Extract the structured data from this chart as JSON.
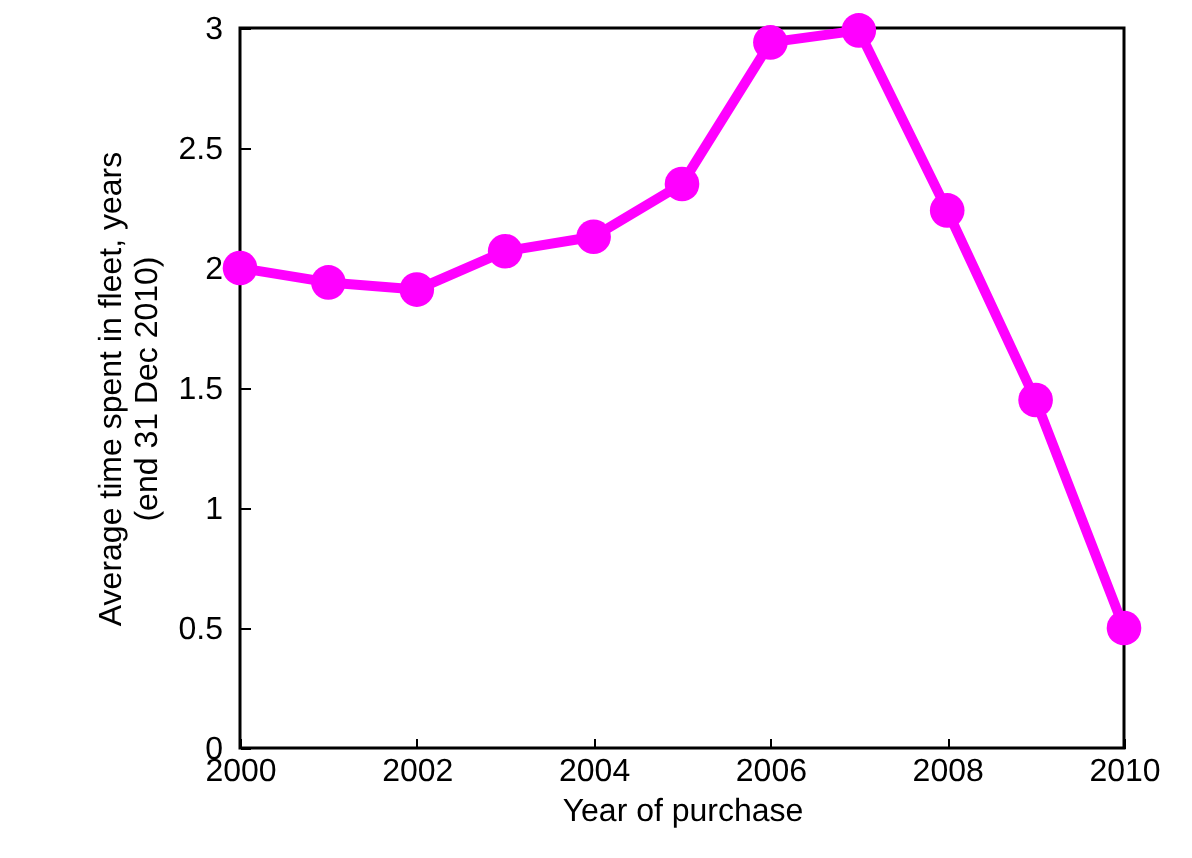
{
  "chart_data": {
    "type": "line",
    "xlabel": "Year of purchase",
    "ylabel": "Average time spent in fleet, years\n(end 31 Dec 2010)",
    "x": [
      2000,
      2001,
      2002,
      2003,
      2004,
      2005,
      2006,
      2007,
      2008,
      2009,
      2010
    ],
    "series": [
      {
        "color": "#ff00ff",
        "values": [
          2.0,
          1.94,
          1.91,
          2.07,
          2.13,
          2.35,
          2.94,
          2.99,
          2.24,
          1.45,
          0.5
        ]
      }
    ],
    "xlim": [
      2000,
      2010
    ],
    "xticks": [
      2000,
      2002,
      2004,
      2006,
      2008,
      2010
    ],
    "ylim": [
      0,
      3
    ],
    "yticks": [
      0,
      0.5,
      1,
      1.5,
      2,
      2.5,
      3
    ],
    "marker": "circle",
    "line_style": "solid",
    "grid": false
  }
}
